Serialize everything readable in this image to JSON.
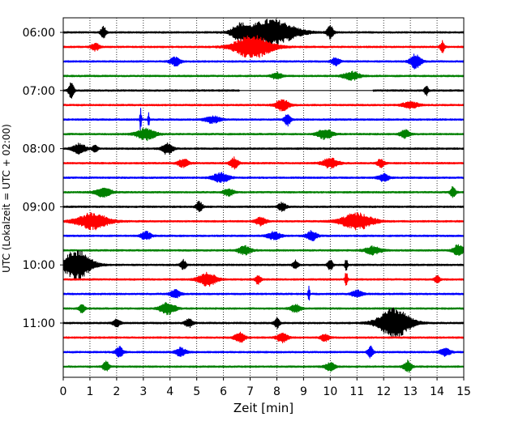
{
  "chart_data": {
    "type": "line",
    "title": "",
    "xlabel": "Zeit  [min]",
    "ylabel": "UTC (Lokalzeit = UTC + 02:00)",
    "xlim": [
      0,
      15
    ],
    "x_ticks": [
      0,
      1,
      2,
      3,
      4,
      5,
      6,
      7,
      8,
      9,
      10,
      11,
      12,
      13,
      14,
      15
    ],
    "x_tick_labels": [
      "0",
      "1",
      "2",
      "3",
      "4",
      "5",
      "6",
      "7",
      "8",
      "9",
      "10",
      "11",
      "12",
      "13",
      "14",
      "15"
    ],
    "y_tick_labels": [
      "06:00",
      "07:00",
      "08:00",
      "09:00",
      "10:00",
      "11:00"
    ],
    "vertical_grid": true,
    "grid_style": "dotted",
    "trace_colors": [
      "#000000",
      "#ff0000",
      "#0000ff",
      "#008000"
    ],
    "traces": [
      {
        "start": "06:00",
        "color": "#000000",
        "noise": 0.7,
        "events": [
          [
            1.5,
            0.1,
            1.8
          ],
          [
            7.8,
            0.9,
            4.0
          ],
          [
            6.6,
            0.3,
            2.2
          ],
          [
            10.0,
            0.12,
            2.0
          ]
        ]
      },
      {
        "start": "06:15",
        "color": "#ff0000",
        "noise": 0.7,
        "events": [
          [
            7.1,
            0.7,
            3.5
          ],
          [
            14.2,
            0.08,
            2.0
          ],
          [
            1.2,
            0.15,
            1.2
          ]
        ]
      },
      {
        "start": "06:30",
        "color": "#0000ff",
        "noise": 0.7,
        "events": [
          [
            13.2,
            0.2,
            2.3
          ],
          [
            4.2,
            0.2,
            1.3
          ],
          [
            10.2,
            0.15,
            1.2
          ]
        ]
      },
      {
        "start": "06:45",
        "color": "#008000",
        "noise": 0.7,
        "events": [
          [
            10.8,
            0.3,
            1.3
          ],
          [
            8.0,
            0.2,
            1.0
          ]
        ]
      },
      {
        "start": "07:00",
        "color": "#000000",
        "noise": 0.7,
        "events": [
          [
            0.3,
            0.1,
            2.5
          ],
          [
            13.6,
            0.08,
            1.5
          ]
        ],
        "gap": [
          6.6,
          11.6
        ]
      },
      {
        "start": "07:15",
        "color": "#ff0000",
        "noise": 0.7,
        "events": [
          [
            8.2,
            0.25,
            1.8
          ],
          [
            13.0,
            0.3,
            1.0
          ]
        ]
      },
      {
        "start": "07:30",
        "color": "#0000ff",
        "noise": 0.7,
        "events": [
          [
            2.9,
            0.03,
            4.0
          ],
          [
            3.2,
            0.03,
            3.2
          ],
          [
            8.4,
            0.12,
            1.8
          ],
          [
            5.6,
            0.3,
            1.0
          ]
        ]
      },
      {
        "start": "07:45",
        "color": "#008000",
        "noise": 0.7,
        "events": [
          [
            3.1,
            0.35,
            1.8
          ],
          [
            9.8,
            0.3,
            1.5
          ],
          [
            12.8,
            0.2,
            1.2
          ]
        ]
      },
      {
        "start": "08:00",
        "color": "#000000",
        "noise": 0.7,
        "events": [
          [
            0.6,
            0.25,
            1.5
          ],
          [
            3.9,
            0.2,
            1.8
          ],
          [
            1.2,
            0.1,
            1.2
          ]
        ]
      },
      {
        "start": "08:15",
        "color": "#ff0000",
        "noise": 0.7,
        "events": [
          [
            6.4,
            0.15,
            1.8
          ],
          [
            10.0,
            0.3,
            1.5
          ],
          [
            4.5,
            0.2,
            1.3
          ],
          [
            11.9,
            0.15,
            1.2
          ]
        ]
      },
      {
        "start": "08:30",
        "color": "#0000ff",
        "noise": 0.7,
        "events": [
          [
            5.9,
            0.3,
            1.5
          ],
          [
            12.0,
            0.2,
            1.2
          ]
        ]
      },
      {
        "start": "08:45",
        "color": "#008000",
        "noise": 0.7,
        "events": [
          [
            14.6,
            0.1,
            1.8
          ],
          [
            1.5,
            0.3,
            1.4
          ],
          [
            6.2,
            0.2,
            1.1
          ]
        ]
      },
      {
        "start": "09:00",
        "color": "#000000",
        "noise": 0.7,
        "events": [
          [
            5.1,
            0.12,
            1.6
          ],
          [
            8.2,
            0.15,
            1.3
          ]
        ]
      },
      {
        "start": "09:15",
        "color": "#ff0000",
        "noise": 0.7,
        "events": [
          [
            1.1,
            0.6,
            2.5
          ],
          [
            11.0,
            0.6,
            2.5
          ],
          [
            7.4,
            0.2,
            1.3
          ]
        ]
      },
      {
        "start": "09:30",
        "color": "#0000ff",
        "noise": 0.7,
        "events": [
          [
            9.3,
            0.2,
            1.5
          ],
          [
            3.1,
            0.2,
            1.2
          ],
          [
            7.9,
            0.25,
            1.2
          ]
        ]
      },
      {
        "start": "09:45",
        "color": "#008000",
        "noise": 0.7,
        "events": [
          [
            14.8,
            0.2,
            1.8
          ],
          [
            6.8,
            0.25,
            1.3
          ],
          [
            11.6,
            0.3,
            1.2
          ]
        ]
      },
      {
        "start": "10:00",
        "color": "#000000",
        "noise": 0.7,
        "events": [
          [
            0.5,
            0.55,
            4.5
          ],
          [
            10.0,
            0.1,
            1.5
          ],
          [
            4.5,
            0.1,
            1.5
          ],
          [
            8.7,
            0.1,
            1.3
          ],
          [
            10.6,
            0.05,
            1.8
          ]
        ]
      },
      {
        "start": "10:15",
        "color": "#ff0000",
        "noise": 0.7,
        "events": [
          [
            5.4,
            0.35,
            2.0
          ],
          [
            7.3,
            0.1,
            1.5
          ],
          [
            10.6,
            0.05,
            2.5
          ],
          [
            14.0,
            0.1,
            1.3
          ]
        ]
      },
      {
        "start": "10:30",
        "color": "#0000ff",
        "noise": 0.7,
        "events": [
          [
            9.2,
            0.03,
            3.5
          ],
          [
            4.2,
            0.2,
            1.2
          ],
          [
            11.0,
            0.2,
            1.1
          ]
        ]
      },
      {
        "start": "10:45",
        "color": "#008000",
        "noise": 0.7,
        "events": [
          [
            3.9,
            0.3,
            1.8
          ],
          [
            0.7,
            0.1,
            1.5
          ],
          [
            8.7,
            0.2,
            1.2
          ]
        ]
      },
      {
        "start": "11:00",
        "color": "#000000",
        "noise": 0.7,
        "events": [
          [
            12.4,
            0.6,
            4.5
          ],
          [
            8.0,
            0.1,
            1.6
          ],
          [
            4.7,
            0.15,
            1.3
          ],
          [
            2.0,
            0.15,
            1.1
          ]
        ]
      },
      {
        "start": "11:15",
        "color": "#ff0000",
        "noise": 0.7,
        "events": [
          [
            6.6,
            0.2,
            1.5
          ],
          [
            8.2,
            0.2,
            1.5
          ],
          [
            9.8,
            0.15,
            1.2
          ]
        ]
      },
      {
        "start": "11:30",
        "color": "#0000ff",
        "noise": 0.7,
        "events": [
          [
            2.1,
            0.15,
            1.7
          ],
          [
            4.4,
            0.2,
            1.3
          ],
          [
            11.5,
            0.1,
            1.8
          ],
          [
            14.3,
            0.2,
            1.2
          ]
        ]
      },
      {
        "start": "11:45",
        "color": "#008000",
        "noise": 0.7,
        "events": [
          [
            1.6,
            0.12,
            1.6
          ],
          [
            12.9,
            0.15,
            1.8
          ],
          [
            10.0,
            0.2,
            1.2
          ]
        ]
      }
    ]
  }
}
